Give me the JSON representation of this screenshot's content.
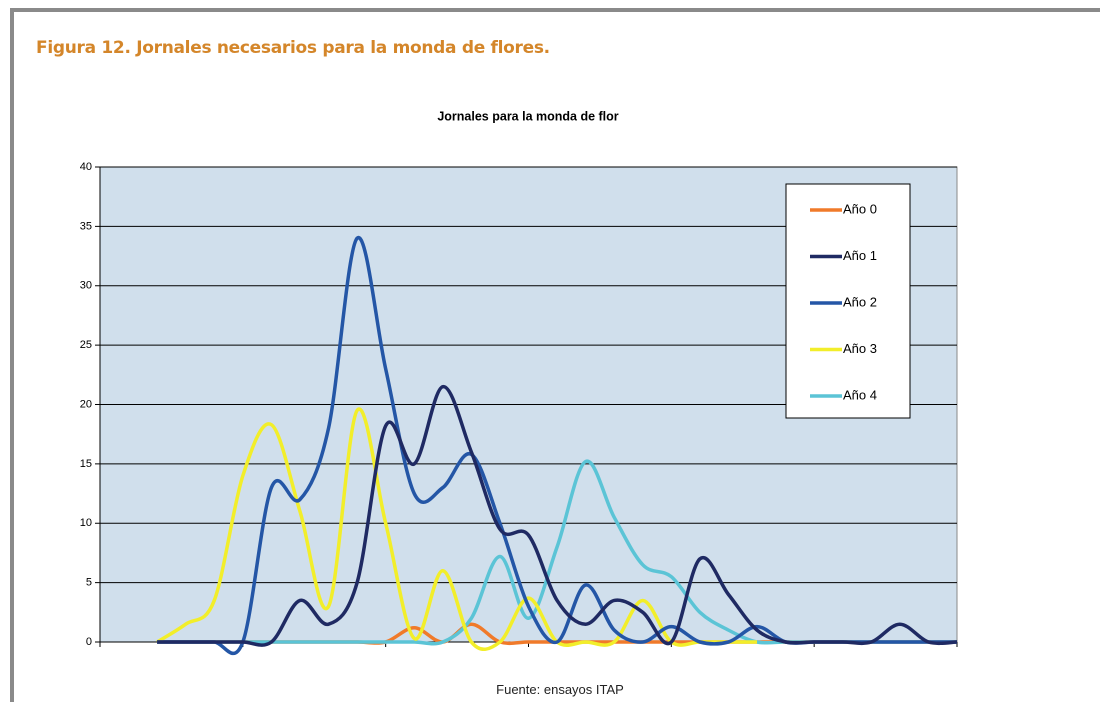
{
  "figure": {
    "caption": "Figura 12. Jornales necesarios para la monda de flores.",
    "source": "Fuente: ensayos ITAP"
  },
  "chart_data": {
    "type": "line",
    "title": "Jornales para la monda de flor",
    "categories": [
      null,
      null,
      null,
      null,
      null,
      null,
      null,
      null,
      null,
      null,
      null,
      null,
      null,
      null,
      null,
      null,
      null,
      null,
      null,
      null,
      null,
      null,
      null,
      null,
      null,
      null,
      null,
      null,
      null,
      null,
      null
    ],
    "ylim": [
      0,
      40
    ],
    "yticks": [
      0,
      5,
      10,
      15,
      20,
      25,
      30,
      35,
      40
    ],
    "grid": true,
    "legend": "upper right",
    "series": [
      {
        "name": "Año 0",
        "color": "#f07a2a",
        "values": [
          null,
          null,
          0,
          0,
          0,
          0,
          0,
          0,
          0,
          0,
          0,
          1.2,
          0,
          1.5,
          0,
          0,
          0,
          0,
          0,
          0,
          0,
          0,
          0,
          0,
          0,
          0,
          0,
          0,
          0,
          0,
          0
        ]
      },
      {
        "name": "Año 1",
        "color": "#1f2a63",
        "values": [
          null,
          null,
          0,
          0,
          0,
          0,
          0,
          3.5,
          1.5,
          5,
          18.2,
          15,
          21.5,
          16,
          9.5,
          9,
          3.5,
          1.5,
          3.5,
          2.5,
          0,
          7,
          4,
          1,
          0,
          0,
          0,
          0,
          1.5,
          0,
          0
        ]
      },
      {
        "name": "Año 2",
        "color": "#2456a6",
        "values": [
          null,
          null,
          0,
          0,
          0,
          0,
          13,
          12,
          18,
          34,
          23,
          12.5,
          13,
          15.8,
          10,
          3,
          0,
          4.8,
          1,
          0,
          1.3,
          0,
          0,
          1.3,
          0,
          0,
          0,
          0,
          0,
          0,
          0
        ]
      },
      {
        "name": "Año 3",
        "color": "#f2ee2a",
        "values": [
          null,
          null,
          0,
          1.5,
          3.5,
          14,
          18.3,
          11,
          3,
          19.5,
          10,
          0.3,
          6,
          0,
          0,
          3.7,
          0,
          0,
          0,
          3.5,
          0,
          0,
          0,
          0,
          null,
          null,
          null,
          null,
          null,
          null,
          null
        ]
      },
      {
        "name": "Año 4",
        "color": "#5bc4d6",
        "values": [
          null,
          null,
          0,
          0,
          0,
          0,
          0,
          0,
          0,
          0,
          0,
          0,
          0,
          2,
          7.2,
          2,
          8,
          15.2,
          10.5,
          6.5,
          5.5,
          2.5,
          1,
          0,
          0,
          0,
          0,
          0,
          0,
          0,
          0
        ]
      }
    ]
  }
}
